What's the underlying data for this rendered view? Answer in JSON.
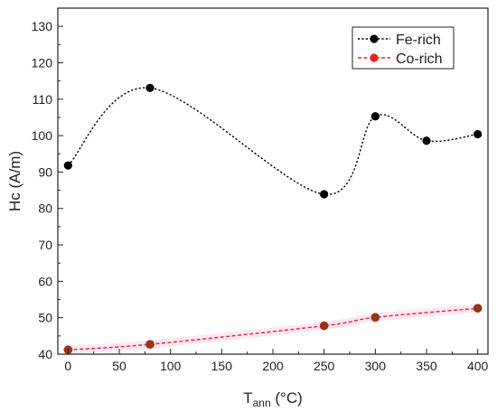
{
  "chart_data": {
    "type": "line",
    "xlabel": "T",
    "xlabel_sub": "ann",
    "xlabel_unit": " (°C)",
    "ylabel": "Hc (A/m)",
    "xlim": [
      -10,
      410
    ],
    "ylim": [
      40,
      135
    ],
    "xticks": [
      0,
      50,
      100,
      150,
      200,
      250,
      300,
      350,
      400
    ],
    "yticks": [
      40,
      50,
      60,
      70,
      80,
      90,
      100,
      110,
      120,
      130
    ],
    "grid": false,
    "legend_position": "top-right",
    "series": [
      {
        "name": "Fe-rich",
        "color": "#000000",
        "line_style": "dotted-smooth",
        "x": [
          0,
          80,
          250,
          300,
          350,
          400
        ],
        "y": [
          91.8,
          113.1,
          83.9,
          105.3,
          98.6,
          100.4
        ]
      },
      {
        "name": "Co-rich",
        "color": "#e8241f",
        "line_style": "dashed",
        "marker_fill": "#8b3a1a",
        "x": [
          0,
          80,
          250,
          300,
          400
        ],
        "y": [
          41.2,
          42.7,
          47.8,
          50.1,
          52.6
        ]
      }
    ]
  }
}
